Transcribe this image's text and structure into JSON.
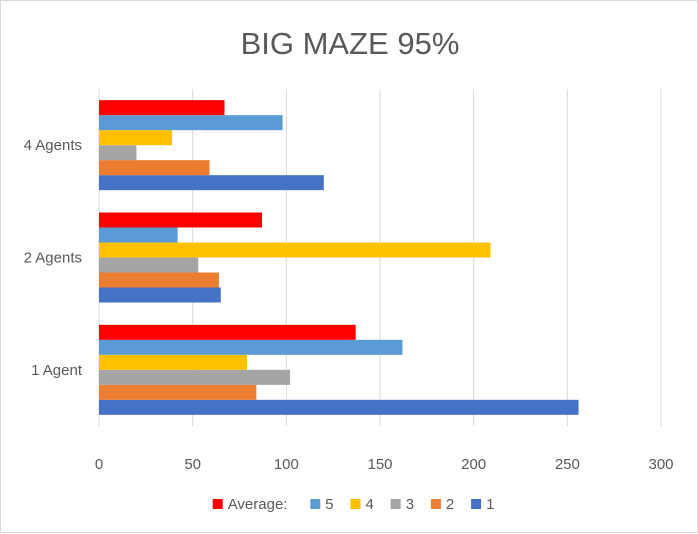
{
  "chart_data": {
    "type": "bar",
    "orientation": "horizontal",
    "title": "BIG MAZE 95%",
    "categories": [
      "1 Agent",
      "2 Agents",
      "4 Agents"
    ],
    "series": [
      {
        "name": "1",
        "color": "#4472C4",
        "values": [
          256,
          65,
          120
        ]
      },
      {
        "name": "2",
        "color": "#ED7D31",
        "values": [
          84,
          64,
          59
        ]
      },
      {
        "name": "3",
        "color": "#A5A5A5",
        "values": [
          102,
          53,
          20
        ]
      },
      {
        "name": "4",
        "color": "#FFC000",
        "values": [
          79,
          209,
          39
        ]
      },
      {
        "name": "5",
        "color": "#5B9BD5",
        "values": [
          162,
          42,
          98
        ]
      },
      {
        "name": "Average:",
        "color": "#FF0000",
        "values": [
          137,
          87,
          67
        ]
      }
    ],
    "xlim": [
      0,
      300
    ],
    "x_ticks": [
      "0",
      "50",
      "100",
      "150",
      "200",
      "250",
      "300"
    ],
    "grid": true,
    "legend_position": "bottom"
  }
}
